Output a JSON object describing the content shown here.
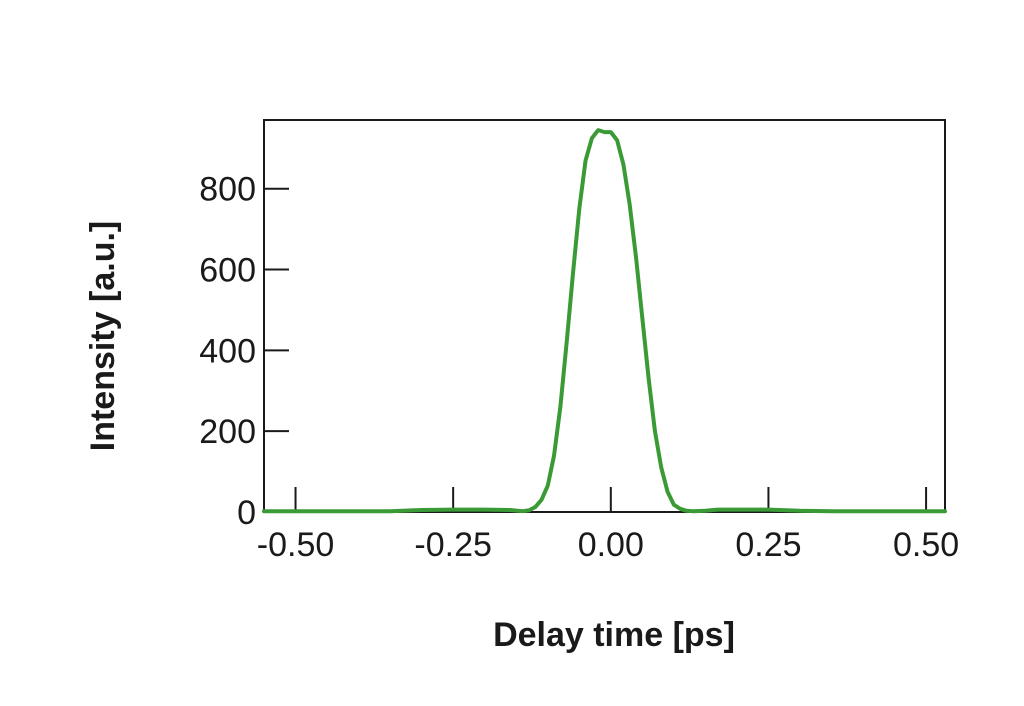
{
  "chart_data": {
    "type": "line",
    "xlabel": "Delay time [ps]",
    "ylabel": "Intensity [a.u.]",
    "xlim": [
      -0.55,
      0.53
    ],
    "ylim": [
      0,
      970
    ],
    "x_ticks": [
      -0.5,
      -0.25,
      0.0,
      0.25,
      0.5
    ],
    "x_tick_labels": [
      "-0.50",
      "-0.25",
      "0.00",
      "0.25",
      "0.50"
    ],
    "y_ticks": [
      0,
      200,
      400,
      600,
      800
    ],
    "y_tick_labels": [
      "0",
      "200",
      "400",
      "600",
      "800"
    ],
    "grid": false,
    "line_color": "#3a9a35",
    "series": [
      {
        "x": [
          -0.55,
          -0.45,
          -0.35,
          -0.3,
          -0.25,
          -0.2,
          -0.16,
          -0.14,
          -0.13,
          -0.12,
          -0.11,
          -0.1,
          -0.09,
          -0.08,
          -0.07,
          -0.06,
          -0.05,
          -0.04,
          -0.03,
          -0.02,
          -0.01,
          0.0,
          0.01,
          0.02,
          0.03,
          0.04,
          0.05,
          0.06,
          0.07,
          0.08,
          0.09,
          0.1,
          0.11,
          0.12,
          0.13,
          0.15,
          0.17,
          0.2,
          0.25,
          0.3,
          0.35,
          0.45,
          0.53
        ],
        "y": [
          2,
          2,
          2,
          5,
          6,
          6,
          5,
          2,
          4,
          12,
          30,
          65,
          140,
          260,
          420,
          590,
          750,
          870,
          925,
          945,
          940,
          940,
          920,
          860,
          760,
          630,
          480,
          330,
          200,
          110,
          50,
          18,
          8,
          3,
          2,
          3,
          6,
          6,
          6,
          3,
          2,
          2,
          2
        ]
      }
    ]
  }
}
